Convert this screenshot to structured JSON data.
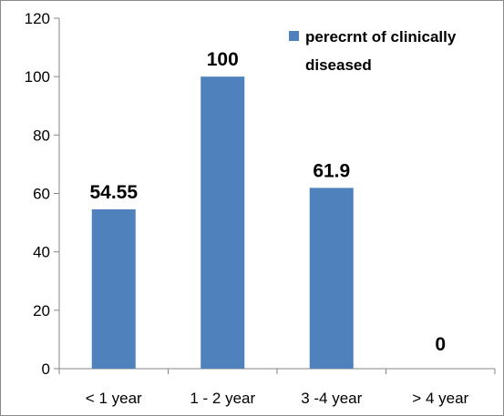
{
  "chart_data": {
    "type": "bar",
    "categories": [
      "< 1 year",
      "1 - 2 year",
      "3 -4 year",
      "> 4 year"
    ],
    "series": [
      {
        "name": "perecrnt of clinically diseased",
        "values": [
          54.55,
          100,
          61.9,
          0
        ],
        "labels": [
          "54.55",
          "100",
          "61.9",
          "0"
        ],
        "color": "#4f81bd"
      }
    ],
    "ylim": [
      0,
      120
    ],
    "yticks": [
      0,
      20,
      40,
      60,
      80,
      100,
      120
    ],
    "grid": false,
    "legend": {
      "position": "top-right",
      "lines": [
        "perecrnt of clinically",
        "diseased"
      ]
    }
  }
}
